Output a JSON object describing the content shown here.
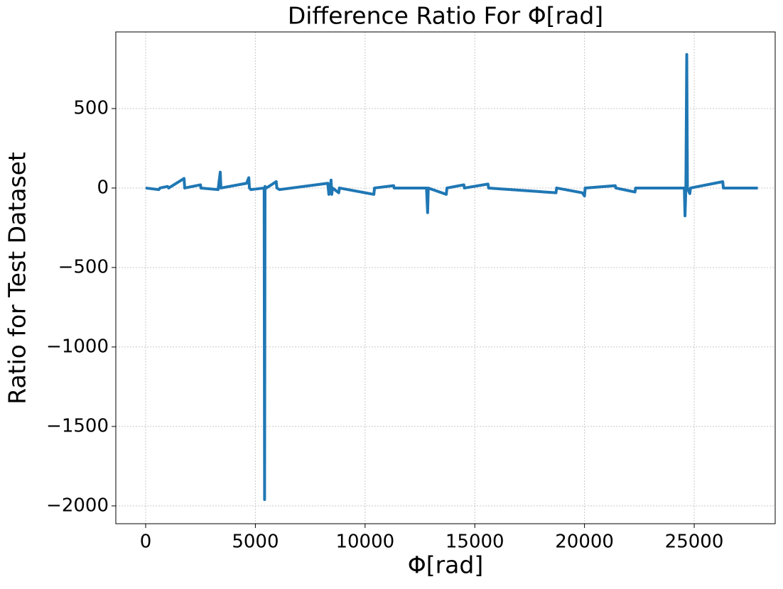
{
  "chart_data": {
    "type": "line",
    "title": "Difference Ratio For Φ[rad]",
    "x_label": "Φ[rad]",
    "y_label": "Ratio for Test Dataset",
    "x": [
      0,
      600,
      650,
      1000,
      1050,
      1750,
      1780,
      2500,
      2520,
      3300,
      3400,
      3430,
      4600,
      4700,
      4730,
      4800,
      5400,
      5420,
      5440,
      5500,
      5950,
      5980,
      6100,
      8300,
      8350,
      8400,
      8450,
      8480,
      8520,
      8800,
      8830,
      10400,
      10430,
      11300,
      11330,
      12800,
      12850,
      12880,
      13700,
      13730,
      14500,
      14530,
      15600,
      15630,
      18700,
      18730,
      19900,
      20000,
      20030,
      21400,
      21430,
      22300,
      22330,
      24550,
      24580,
      24620,
      24660,
      24690,
      24800,
      24830,
      26300,
      26330,
      27900
    ],
    "series": [
      {
        "name": "ratio",
        "color": "#1f77b4",
        "values": [
          0,
          -10,
          0,
          10,
          0,
          60,
          0,
          20,
          0,
          -10,
          100,
          0,
          30,
          65,
          0,
          -10,
          0,
          -1960,
          10,
          0,
          40,
          0,
          -10,
          30,
          -40,
          0,
          50,
          -40,
          0,
          -30,
          0,
          -40,
          0,
          15,
          0,
          0,
          -155,
          0,
          -40,
          0,
          20,
          0,
          25,
          0,
          -30,
          0,
          -30,
          -50,
          0,
          15,
          0,
          -25,
          0,
          0,
          -175,
          0,
          840,
          0,
          -35,
          0,
          40,
          0,
          0
        ]
      }
    ],
    "xlim": [
      -1360,
      28690
    ],
    "ylim": [
      -2112,
      982
    ],
    "xticks": [
      0,
      5000,
      10000,
      15000,
      20000,
      25000
    ],
    "yticks": [
      {
        "value": -2000,
        "label": "−2000"
      },
      {
        "value": -1500,
        "label": "−1500"
      },
      {
        "value": -1000,
        "label": "−1000"
      },
      {
        "value": -500,
        "label": "−500"
      },
      0,
      500
    ],
    "grid": true
  }
}
